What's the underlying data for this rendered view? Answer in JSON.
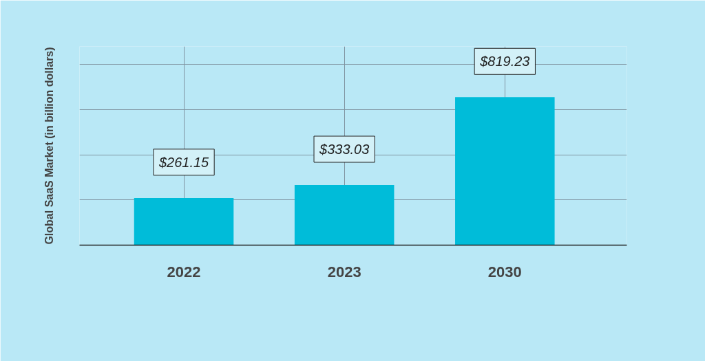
{
  "chart_data": {
    "type": "bar",
    "ylabel": "Global SaaS Market (in billion dollars)",
    "categories": [
      "2022",
      "2023",
      "2030"
    ],
    "values": [
      261.15,
      333.03,
      819.23
    ],
    "value_labels": [
      "$261.15",
      "$333.03",
      "$819.23"
    ],
    "color": "#00bcd9",
    "ylim": [
      0,
      1100
    ],
    "yticks": [
      {
        "value": 250,
        "label": null
      },
      {
        "value": 500,
        "label": null
      },
      {
        "value": 750,
        "label": null
      },
      {
        "value": 1000,
        "label": null
      }
    ],
    "tick_labels": "x",
    "grid": true
  }
}
